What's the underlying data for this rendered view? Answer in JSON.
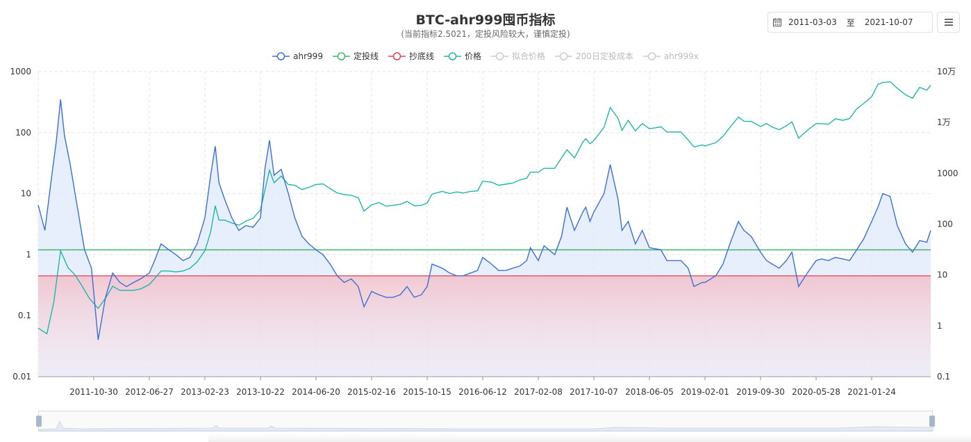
{
  "header": {
    "title": "BTC-ahr999囤币指标",
    "subtitle": "(当前指标2.5021，定投风险较大，谨慎定投)"
  },
  "date_range": {
    "start": "2011-03-03",
    "separator": "至",
    "end": "2021-10-07",
    "icon": "calendar-icon"
  },
  "menu": {
    "icon": "menu-icon"
  },
  "legend": [
    {
      "name": "ahr999",
      "color": "#3a6fd8",
      "active": true
    },
    {
      "name": "定投线",
      "color": "#3bb86a",
      "active": true
    },
    {
      "name": "抄底线",
      "color": "#d8445a",
      "active": true
    },
    {
      "name": "价格",
      "color": "#1fb5a8",
      "active": true
    },
    {
      "name": "拟合价格",
      "color": "#cccccc",
      "active": false
    },
    {
      "name": "200日定投成本",
      "color": "#cccccc",
      "active": false
    },
    {
      "name": "ahr999x",
      "color": "#cccccc",
      "active": false
    }
  ],
  "chart_data": {
    "type": "line",
    "x_tick_labels": [
      "2011-10-30",
      "2012-06-27",
      "2013-02-23",
      "2013-10-22",
      "2014-06-20",
      "2015-02-16",
      "2015-10-15",
      "2016-06-12",
      "2017-02-08",
      "2017-10-07",
      "2018-06-05",
      "2019-02-01",
      "2019-09-30",
      "2020-05-28",
      "2021-01-24"
    ],
    "y_left": {
      "scale": "log",
      "ylim": [
        0.01,
        1000
      ],
      "tick_labels": [
        "1000",
        "100",
        "10",
        "1",
        "0.1",
        "0.01"
      ]
    },
    "y_right": {
      "scale": "log",
      "ylim": [
        0.1,
        100000
      ],
      "tick_labels": [
        "10万",
        "1万",
        "1000",
        "100",
        "10",
        "1",
        "0.1"
      ]
    },
    "grid": true,
    "legend_position": "top-center",
    "reference_lines": [
      {
        "name": "定投线",
        "value": 1.2
      },
      {
        "name": "抄底线",
        "value": 0.45
      }
    ],
    "series": [
      {
        "name": "ahr999",
        "axis": "left",
        "points": [
          [
            "2011-03-03",
            6.5
          ],
          [
            "2011-04-01",
            2.5
          ],
          [
            "2011-05-01",
            20
          ],
          [
            "2011-05-20",
            70
          ],
          [
            "2011-06-08",
            350
          ],
          [
            "2011-06-25",
            90
          ],
          [
            "2011-07-20",
            30
          ],
          [
            "2011-08-20",
            6
          ],
          [
            "2011-09-20",
            1.2
          ],
          [
            "2011-10-20",
            0.6
          ],
          [
            "2011-11-18",
            0.04
          ],
          [
            "2011-12-20",
            0.2
          ],
          [
            "2012-01-20",
            0.5
          ],
          [
            "2012-02-20",
            0.35
          ],
          [
            "2012-03-20",
            0.3
          ],
          [
            "2012-04-20",
            0.35
          ],
          [
            "2012-05-20",
            0.4
          ],
          [
            "2012-06-27",
            0.5
          ],
          [
            "2012-07-20",
            0.8
          ],
          [
            "2012-08-17",
            1.5
          ],
          [
            "2012-09-20",
            1.2
          ],
          [
            "2012-10-20",
            1.0
          ],
          [
            "2012-11-20",
            0.8
          ],
          [
            "2012-12-20",
            0.9
          ],
          [
            "2013-01-20",
            1.5
          ],
          [
            "2013-02-23",
            4
          ],
          [
            "2013-03-20",
            20
          ],
          [
            "2013-04-09",
            60
          ],
          [
            "2013-04-25",
            15
          ],
          [
            "2013-05-20",
            8
          ],
          [
            "2013-06-20",
            4
          ],
          [
            "2013-07-20",
            2.5
          ],
          [
            "2013-08-20",
            3
          ],
          [
            "2013-09-20",
            2.8
          ],
          [
            "2013-10-22",
            4
          ],
          [
            "2013-11-10",
            25
          ],
          [
            "2013-11-30",
            75
          ],
          [
            "2013-12-20",
            20
          ],
          [
            "2014-01-20",
            25
          ],
          [
            "2014-02-20",
            10
          ],
          [
            "2014-03-20",
            4
          ],
          [
            "2014-04-20",
            2
          ],
          [
            "2014-05-20",
            1.5
          ],
          [
            "2014-06-20",
            1.2
          ],
          [
            "2014-07-20",
            1.0
          ],
          [
            "2014-08-20",
            0.7
          ],
          [
            "2014-09-20",
            0.45
          ],
          [
            "2014-10-20",
            0.35
          ],
          [
            "2014-11-20",
            0.4
          ],
          [
            "2014-12-20",
            0.3
          ],
          [
            "2015-01-14",
            0.14
          ],
          [
            "2015-02-16",
            0.25
          ],
          [
            "2015-03-20",
            0.22
          ],
          [
            "2015-04-20",
            0.2
          ],
          [
            "2015-05-20",
            0.2
          ],
          [
            "2015-06-20",
            0.22
          ],
          [
            "2015-07-20",
            0.3
          ],
          [
            "2015-08-20",
            0.2
          ],
          [
            "2015-09-20",
            0.22
          ],
          [
            "2015-10-15",
            0.3
          ],
          [
            "2015-11-05",
            0.7
          ],
          [
            "2015-12-20",
            0.6
          ],
          [
            "2016-01-20",
            0.5
          ],
          [
            "2016-02-20",
            0.45
          ],
          [
            "2016-03-20",
            0.45
          ],
          [
            "2016-04-20",
            0.5
          ],
          [
            "2016-05-20",
            0.55
          ],
          [
            "2016-06-12",
            0.9
          ],
          [
            "2016-07-20",
            0.7
          ],
          [
            "2016-08-20",
            0.55
          ],
          [
            "2016-09-20",
            0.55
          ],
          [
            "2016-10-20",
            0.6
          ],
          [
            "2016-11-20",
            0.65
          ],
          [
            "2016-12-20",
            0.8
          ],
          [
            "2017-01-05",
            1.3
          ],
          [
            "2017-02-08",
            0.8
          ],
          [
            "2017-03-05",
            1.4
          ],
          [
            "2017-04-20",
            1.0
          ],
          [
            "2017-05-20",
            2
          ],
          [
            "2017-06-12",
            6
          ],
          [
            "2017-07-15",
            2.5
          ],
          [
            "2017-08-20",
            5
          ],
          [
            "2017-09-02",
            6
          ],
          [
            "2017-09-20",
            3.5
          ],
          [
            "2017-10-07",
            5
          ],
          [
            "2017-11-20",
            10
          ],
          [
            "2017-12-17",
            30
          ],
          [
            "2018-01-20",
            8
          ],
          [
            "2018-02-06",
            2.5
          ],
          [
            "2018-03-05",
            3.5
          ],
          [
            "2018-04-05",
            1.5
          ],
          [
            "2018-05-05",
            2.5
          ],
          [
            "2018-06-05",
            1.3
          ],
          [
            "2018-07-25",
            1.2
          ],
          [
            "2018-08-20",
            0.8
          ],
          [
            "2018-09-20",
            0.8
          ],
          [
            "2018-10-20",
            0.8
          ],
          [
            "2018-11-20",
            0.6
          ],
          [
            "2018-12-15",
            0.3
          ],
          [
            "2019-01-20",
            0.35
          ],
          [
            "2019-02-01",
            0.35
          ],
          [
            "2019-03-20",
            0.45
          ],
          [
            "2019-04-20",
            0.7
          ],
          [
            "2019-05-20",
            1.5
          ],
          [
            "2019-06-26",
            3.5
          ],
          [
            "2019-07-20",
            2.5
          ],
          [
            "2019-08-20",
            2
          ],
          [
            "2019-09-30",
            1.1
          ],
          [
            "2019-10-26",
            0.8
          ],
          [
            "2019-11-20",
            0.7
          ],
          [
            "2019-12-20",
            0.6
          ],
          [
            "2020-01-20",
            0.8
          ],
          [
            "2020-02-13",
            1.1
          ],
          [
            "2020-03-13",
            0.3
          ],
          [
            "2020-04-20",
            0.5
          ],
          [
            "2020-05-28",
            0.8
          ],
          [
            "2020-06-20",
            0.85
          ],
          [
            "2020-07-20",
            0.8
          ],
          [
            "2020-08-20",
            0.9
          ],
          [
            "2020-09-20",
            0.85
          ],
          [
            "2020-10-20",
            0.8
          ],
          [
            "2020-11-20",
            1.2
          ],
          [
            "2020-12-20",
            1.8
          ],
          [
            "2021-01-24",
            3.5
          ],
          [
            "2021-02-20",
            6
          ],
          [
            "2021-03-13",
            10
          ],
          [
            "2021-04-14",
            9
          ],
          [
            "2021-05-15",
            3
          ],
          [
            "2021-06-20",
            1.5
          ],
          [
            "2021-07-20",
            1.1
          ],
          [
            "2021-08-20",
            1.7
          ],
          [
            "2021-09-20",
            1.6
          ],
          [
            "2021-10-07",
            2.5
          ]
        ]
      },
      {
        "name": "价格",
        "axis": "right",
        "points": [
          [
            "2011-03-03",
            0.9
          ],
          [
            "2011-04-10",
            0.7
          ],
          [
            "2011-05-10",
            3
          ],
          [
            "2011-06-08",
            30
          ],
          [
            "2011-07-10",
            14
          ],
          [
            "2011-08-10",
            10
          ],
          [
            "2011-09-10",
            6
          ],
          [
            "2011-10-10",
            3.5
          ],
          [
            "2011-11-18",
            2.2
          ],
          [
            "2011-12-20",
            3.5
          ],
          [
            "2012-01-20",
            6
          ],
          [
            "2012-02-20",
            5
          ],
          [
            "2012-03-20",
            5
          ],
          [
            "2012-04-20",
            5
          ],
          [
            "2012-05-20",
            5.3
          ],
          [
            "2012-06-27",
            6.5
          ],
          [
            "2012-07-20",
            8.5
          ],
          [
            "2012-08-17",
            12
          ],
          [
            "2012-09-20",
            12
          ],
          [
            "2012-10-20",
            11.5
          ],
          [
            "2012-11-20",
            12
          ],
          [
            "2012-12-20",
            13.5
          ],
          [
            "2013-01-20",
            18
          ],
          [
            "2013-02-23",
            30
          ],
          [
            "2013-03-20",
            70
          ],
          [
            "2013-04-09",
            230
          ],
          [
            "2013-04-25",
            120
          ],
          [
            "2013-05-20",
            120
          ],
          [
            "2013-06-20",
            105
          ],
          [
            "2013-07-20",
            95
          ],
          [
            "2013-08-20",
            115
          ],
          [
            "2013-09-20",
            130
          ],
          [
            "2013-10-22",
            190
          ],
          [
            "2013-11-30",
            1150
          ],
          [
            "2013-12-20",
            650
          ],
          [
            "2014-01-20",
            880
          ],
          [
            "2014-02-20",
            600
          ],
          [
            "2014-03-20",
            580
          ],
          [
            "2014-04-20",
            480
          ],
          [
            "2014-05-20",
            530
          ],
          [
            "2014-06-20",
            600
          ],
          [
            "2014-07-20",
            620
          ],
          [
            "2014-08-20",
            500
          ],
          [
            "2014-09-20",
            410
          ],
          [
            "2014-10-20",
            380
          ],
          [
            "2014-11-20",
            370
          ],
          [
            "2014-12-20",
            330
          ],
          [
            "2015-01-14",
            180
          ],
          [
            "2015-02-16",
            240
          ],
          [
            "2015-03-20",
            265
          ],
          [
            "2015-04-20",
            225
          ],
          [
            "2015-05-20",
            235
          ],
          [
            "2015-06-20",
            245
          ],
          [
            "2015-07-20",
            280
          ],
          [
            "2015-08-20",
            230
          ],
          [
            "2015-09-20",
            235
          ],
          [
            "2015-10-15",
            260
          ],
          [
            "2015-11-05",
            390
          ],
          [
            "2015-12-20",
            440
          ],
          [
            "2016-01-20",
            400
          ],
          [
            "2016-02-20",
            430
          ],
          [
            "2016-03-20",
            410
          ],
          [
            "2016-04-20",
            440
          ],
          [
            "2016-05-20",
            450
          ],
          [
            "2016-06-12",
            700
          ],
          [
            "2016-07-20",
            670
          ],
          [
            "2016-08-20",
            580
          ],
          [
            "2016-09-20",
            610
          ],
          [
            "2016-10-20",
            640
          ],
          [
            "2016-11-20",
            740
          ],
          [
            "2016-12-20",
            800
          ],
          [
            "2017-01-05",
            1050
          ],
          [
            "2017-02-08",
            1050
          ],
          [
            "2017-03-05",
            1250
          ],
          [
            "2017-04-20",
            1250
          ],
          [
            "2017-05-20",
            2000
          ],
          [
            "2017-06-12",
            2900
          ],
          [
            "2017-07-15",
            2000
          ],
          [
            "2017-08-20",
            4100
          ],
          [
            "2017-09-02",
            4800
          ],
          [
            "2017-09-20",
            3800
          ],
          [
            "2017-10-07",
            4400
          ],
          [
            "2017-11-20",
            8000
          ],
          [
            "2017-12-17",
            19500
          ],
          [
            "2018-01-20",
            12000
          ],
          [
            "2018-02-06",
            7000
          ],
          [
            "2018-03-05",
            11000
          ],
          [
            "2018-04-05",
            6800
          ],
          [
            "2018-05-05",
            9500
          ],
          [
            "2018-06-05",
            7500
          ],
          [
            "2018-07-25",
            8200
          ],
          [
            "2018-08-20",
            6500
          ],
          [
            "2018-09-20",
            6500
          ],
          [
            "2018-10-20",
            6500
          ],
          [
            "2018-11-20",
            4500
          ],
          [
            "2018-12-15",
            3300
          ],
          [
            "2019-01-20",
            3600
          ],
          [
            "2019-02-01",
            3450
          ],
          [
            "2019-03-20",
            4000
          ],
          [
            "2019-04-20",
            5300
          ],
          [
            "2019-05-20",
            8000
          ],
          [
            "2019-06-26",
            12800
          ],
          [
            "2019-07-20",
            10500
          ],
          [
            "2019-08-20",
            10500
          ],
          [
            "2019-09-30",
            8300
          ],
          [
            "2019-10-26",
            9500
          ],
          [
            "2019-11-20",
            8100
          ],
          [
            "2019-12-20",
            7200
          ],
          [
            "2020-01-20",
            8600
          ],
          [
            "2020-02-13",
            10300
          ],
          [
            "2020-03-13",
            4900
          ],
          [
            "2020-04-20",
            7000
          ],
          [
            "2020-05-28",
            9500
          ],
          [
            "2020-06-20",
            9400
          ],
          [
            "2020-07-20",
            9200
          ],
          [
            "2020-08-20",
            11800
          ],
          [
            "2020-09-20",
            11000
          ],
          [
            "2020-10-20",
            11900
          ],
          [
            "2020-11-20",
            18500
          ],
          [
            "2020-12-20",
            23500
          ],
          [
            "2021-01-24",
            32000
          ],
          [
            "2021-02-20",
            56000
          ],
          [
            "2021-03-13",
            61000
          ],
          [
            "2021-04-14",
            63000
          ],
          [
            "2021-05-15",
            47000
          ],
          [
            "2021-06-20",
            35000
          ],
          [
            "2021-07-20",
            30000
          ],
          [
            "2021-08-20",
            49000
          ],
          [
            "2021-09-20",
            43000
          ],
          [
            "2021-10-07",
            54000
          ]
        ]
      }
    ]
  }
}
